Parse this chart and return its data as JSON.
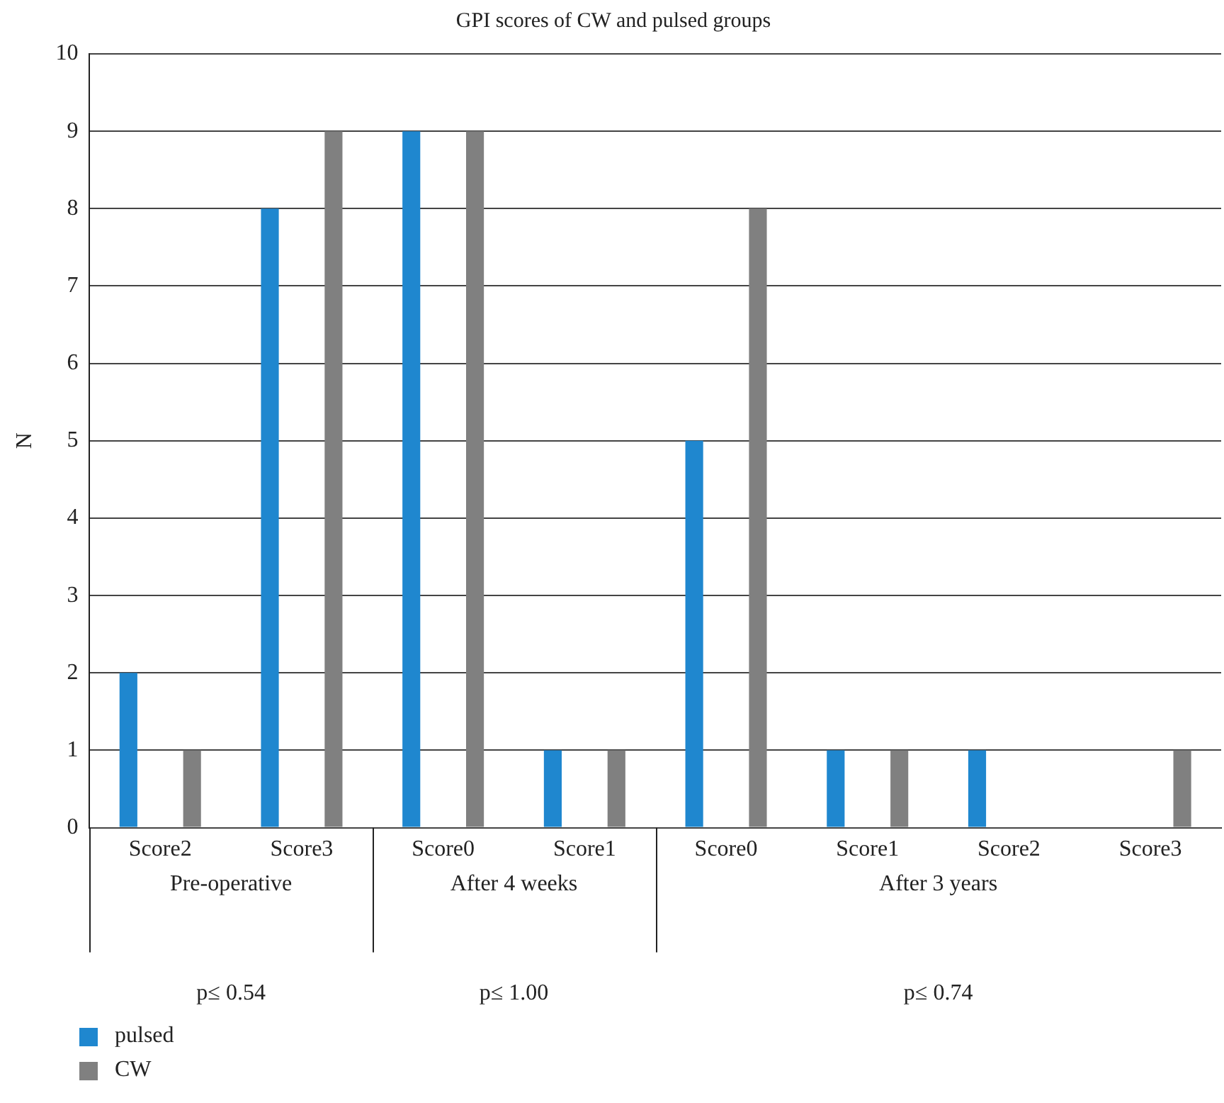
{
  "chart_data": {
    "type": "bar",
    "title": "GPI scores of CW and pulsed groups",
    "ylabel": "N",
    "categories": [
      "Score2",
      "Score3",
      "Score0",
      "Score1",
      "Score0",
      "Score1",
      "Score2",
      "Score3"
    ],
    "series": [
      {
        "name": "pulsed",
        "color": "#1f87cf",
        "values": [
          2,
          8,
          9,
          1,
          5,
          1,
          1,
          0
        ]
      },
      {
        "name": "CW",
        "color": "#808080",
        "values": [
          1,
          9,
          9,
          1,
          8,
          1,
          0,
          1
        ]
      }
    ],
    "ylim": [
      0,
      10
    ],
    "yticks": [
      0,
      1,
      2,
      3,
      4,
      5,
      6,
      7,
      8,
      9,
      10
    ],
    "grid": "y",
    "legend": "bottom left",
    "annotations": [
      "Pre-operative",
      "After 4 weeks",
      "After 3 years",
      "p≤ 0.54",
      "p≤ 1.00",
      "p≤ 0.74"
    ]
  }
}
